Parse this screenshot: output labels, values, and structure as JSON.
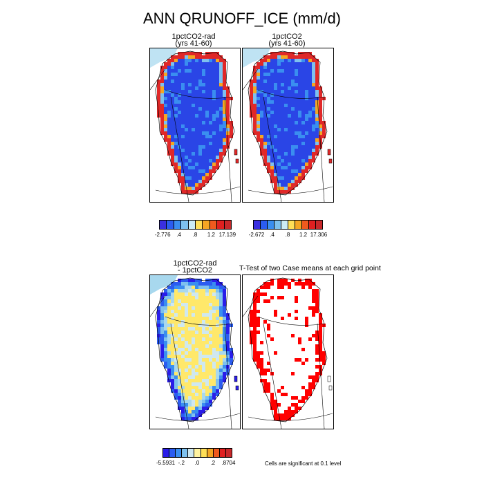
{
  "title": "ANN QRUNOFF_ICE (mm/d)",
  "panels": {
    "p1": {
      "title_line1": "1pctCO2-rad",
      "title_line2": "(yrs 41-60)"
    },
    "p2": {
      "title_line1": "1pctCO2",
      "title_line2": "(yrs 41-60)"
    },
    "p3": {
      "title_line1": "1pctCO2-rad",
      "title_line2": "- 1pctCO2"
    },
    "p4": {
      "title": "T-Test of two Case means at each grid point"
    }
  },
  "colorbars": {
    "cb1": {
      "colors": [
        "#3a2fe0",
        "#2b5cf0",
        "#3a8ef0",
        "#7ec1ee",
        "#ccecf4",
        "#ffdf57",
        "#f4a623",
        "#f05a1e",
        "#e02020",
        "#c8282a"
      ],
      "labels": [
        "-2.776",
        ".4",
        ".8",
        "1.2",
        "17.139"
      ]
    },
    "cb2": {
      "colors": [
        "#3a2fe0",
        "#2b5cf0",
        "#3a8ef0",
        "#7ec1ee",
        "#ccecf4",
        "#ffdf57",
        "#f4a623",
        "#f05a1e",
        "#e02020",
        "#c8282a"
      ],
      "labels": [
        "-2.672",
        ".4",
        ".8",
        "1.2",
        "17.306"
      ]
    },
    "cb3": {
      "colors": [
        "#2a1de8",
        "#2b5cf0",
        "#3a8ef0",
        "#7ec1ee",
        "#cfe8f0",
        "#fff3a0",
        "#ffdf57",
        "#f4a623",
        "#f05a1e",
        "#e02020",
        "#c8282a"
      ],
      "labels": [
        "-5.5931",
        "-.2",
        ".0",
        ".2",
        ".8704"
      ]
    }
  },
  "significance_note": "Cells are significant at 0.1 level",
  "colors": {
    "blue_fill": "#2a45e6",
    "red_fill": "#e02828",
    "yellow_fill": "#ffe86a",
    "light_blue_fill": "#a8d8ee",
    "sig_red": "#ff0000",
    "map_line": "#000000"
  }
}
